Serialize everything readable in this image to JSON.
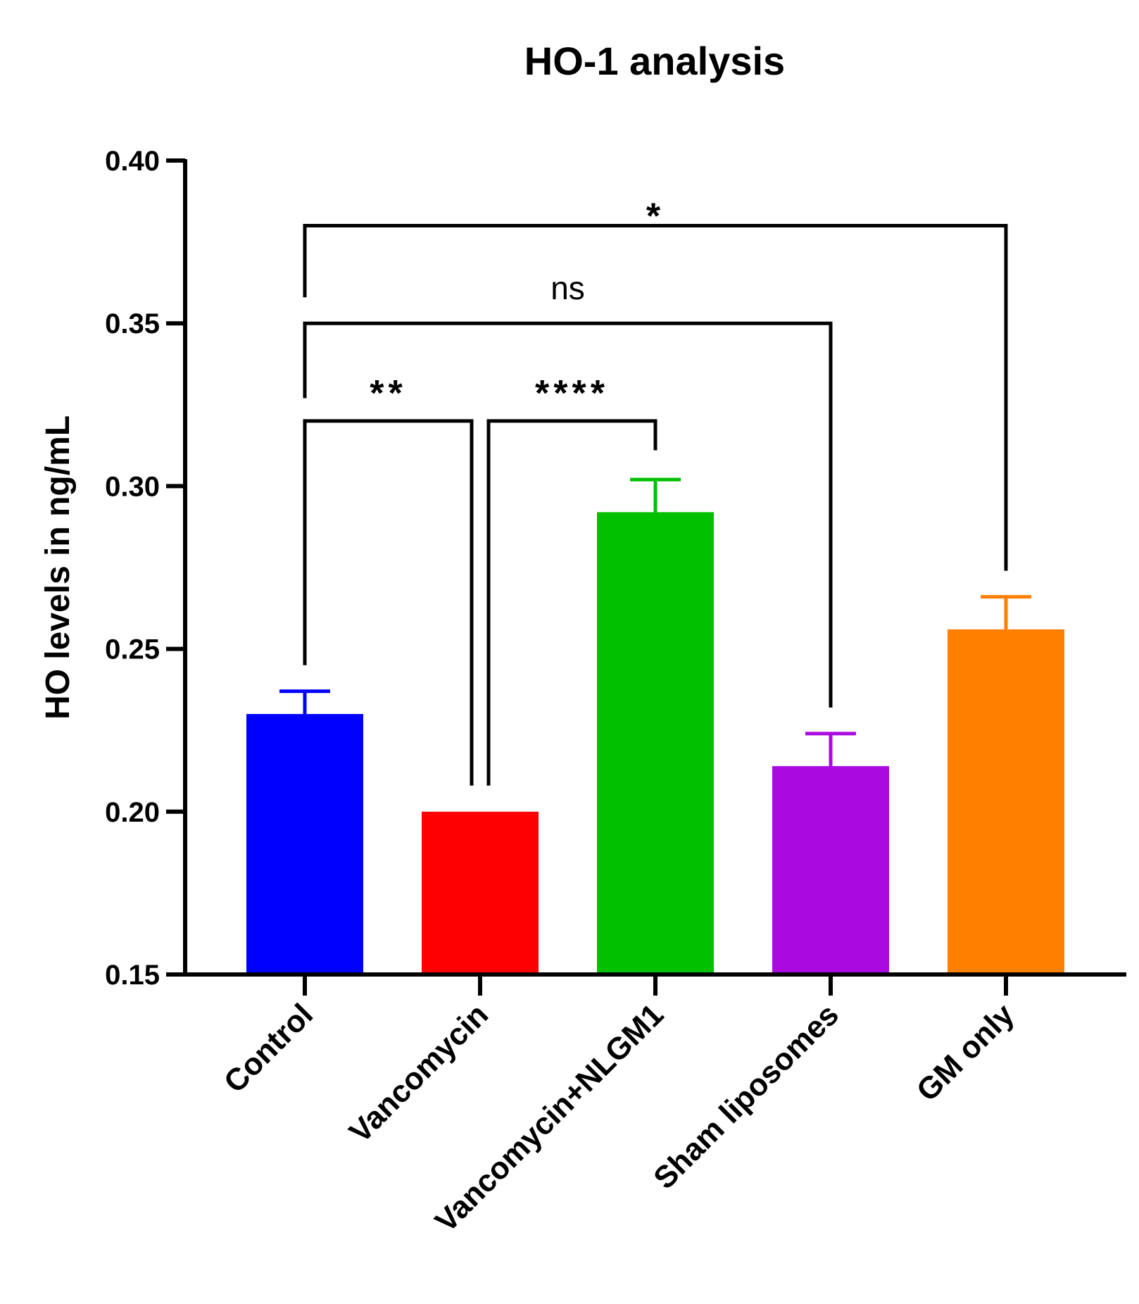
{
  "chart_data": {
    "type": "bar",
    "title": "HO-1 analysis",
    "ylabel": "HO levels in ng/mL",
    "xlabel": "",
    "ylim": [
      0.15,
      0.4
    ],
    "yticks": [
      "0.15",
      "0.20",
      "0.25",
      "0.30",
      "0.35",
      "0.40"
    ],
    "grid": false,
    "categories": [
      "Control",
      "Vancomycin",
      "Vancomycin+NLGM1",
      "Sham liposomes",
      "GM only"
    ],
    "values": [
      0.23,
      0.2,
      0.292,
      0.214,
      0.256
    ],
    "errors": [
      0.007,
      0.0,
      0.01,
      0.01,
      0.01
    ],
    "colors": [
      "#0000ff",
      "#ff0000",
      "#00c000",
      "#aa0ae0",
      "#ff8000"
    ],
    "comparisons": [
      {
        "from": 0,
        "to": 1,
        "label": "**",
        "level": 0.32,
        "left_end": 0.245,
        "right_end": 0.208
      },
      {
        "from": 1,
        "to": 2,
        "label": "****",
        "level": 0.32,
        "left_end": 0.208,
        "right_end": 0.311
      },
      {
        "from": 0,
        "to": 3,
        "label": "ns",
        "level": 0.35,
        "left_end": 0.327,
        "right_end": 0.232
      },
      {
        "from": 0,
        "to": 4,
        "label": "*",
        "level": 0.38,
        "left_end": 0.358,
        "right_end": 0.274
      }
    ]
  }
}
